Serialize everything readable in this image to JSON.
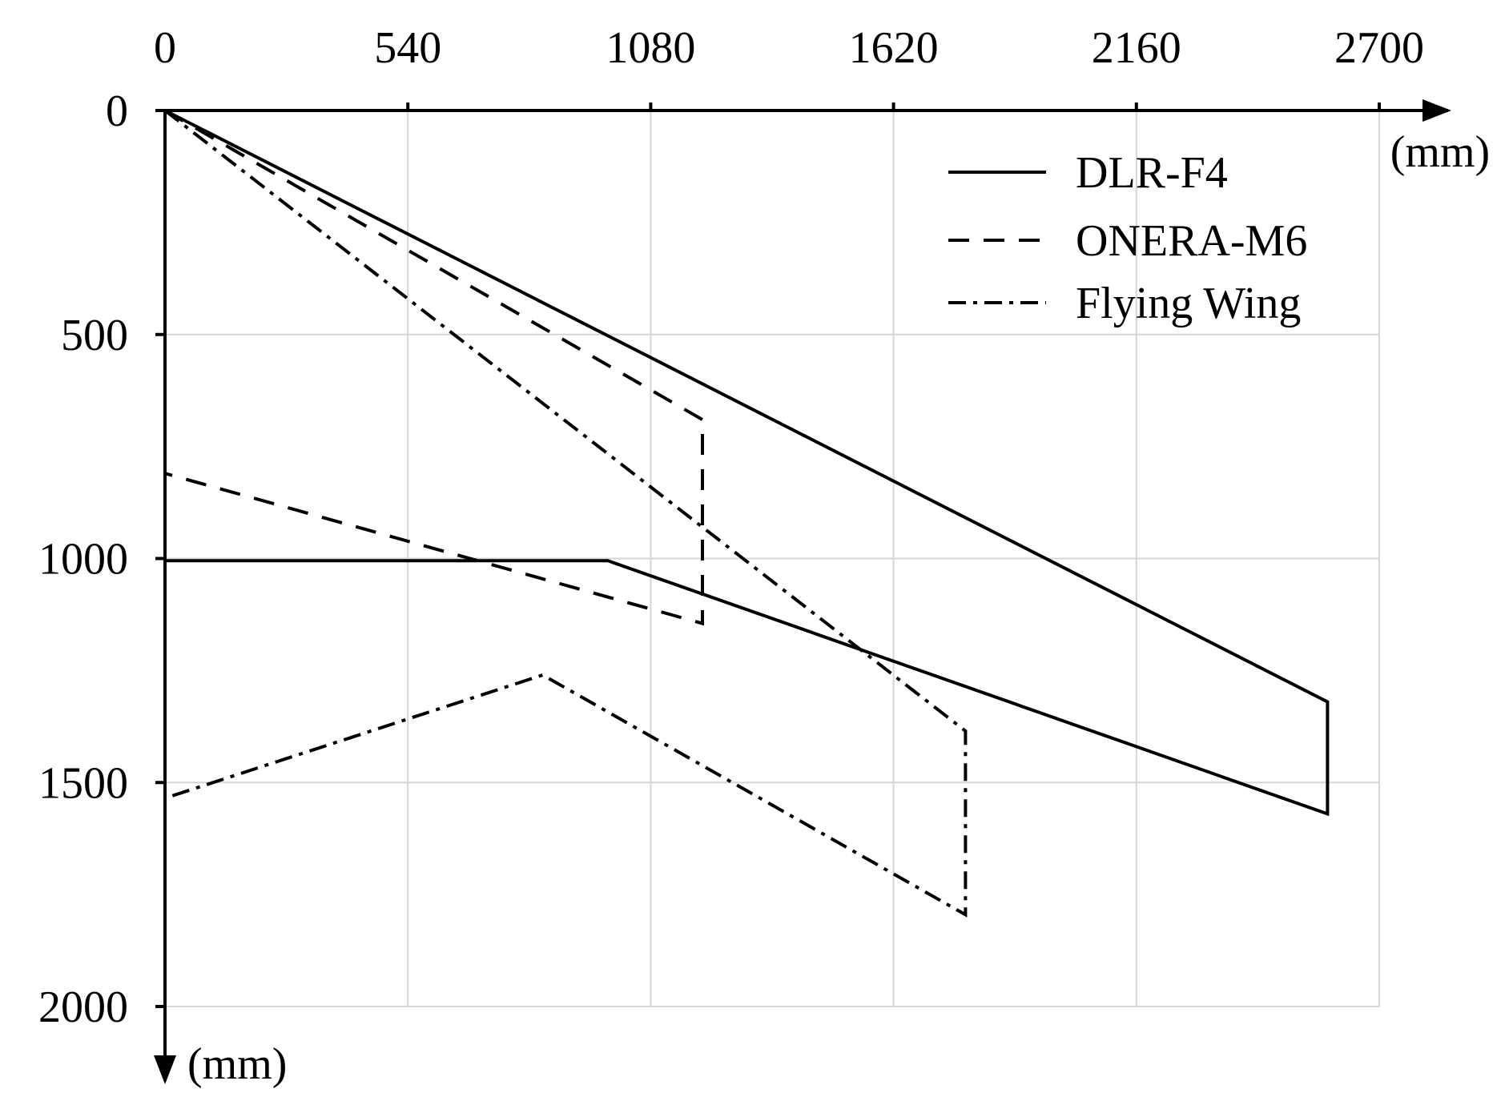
{
  "chart_data": {
    "type": "line",
    "title": "",
    "x_axis": {
      "label": "(mm)",
      "ticks": [
        0,
        540,
        1080,
        1620,
        2160,
        2700
      ],
      "range": [
        0,
        2700
      ],
      "position": "top"
    },
    "y_axis": {
      "label": "(mm)",
      "ticks": [
        0,
        500,
        1000,
        1500,
        2000
      ],
      "range": [
        0,
        2000
      ],
      "direction": "downward"
    },
    "grid": true,
    "legend": {
      "placement": "top-right",
      "entries": [
        {
          "name": "DLR-F4",
          "style": "solid"
        },
        {
          "name": "ONERA-M6",
          "style": "dashed"
        },
        {
          "name": "Flying Wing",
          "style": "dash-dot"
        }
      ]
    },
    "series": [
      {
        "name": "DLR-F4",
        "style": "solid",
        "points": [
          [
            0,
            0
          ],
          [
            2585,
            1320
          ],
          [
            2585,
            1570
          ],
          [
            985,
            1005
          ],
          [
            0,
            1005
          ]
        ]
      },
      {
        "name": "ONERA-M6",
        "style": "dashed",
        "points": [
          [
            0,
            0
          ],
          [
            1195,
            690
          ],
          [
            1195,
            1145
          ],
          [
            0,
            810
          ]
        ]
      },
      {
        "name": "Flying Wing",
        "style": "dash-dot",
        "points": [
          [
            0,
            0
          ],
          [
            1780,
            1385
          ],
          [
            1780,
            1795
          ],
          [
            840,
            1260
          ],
          [
            0,
            1535
          ]
        ]
      }
    ]
  }
}
